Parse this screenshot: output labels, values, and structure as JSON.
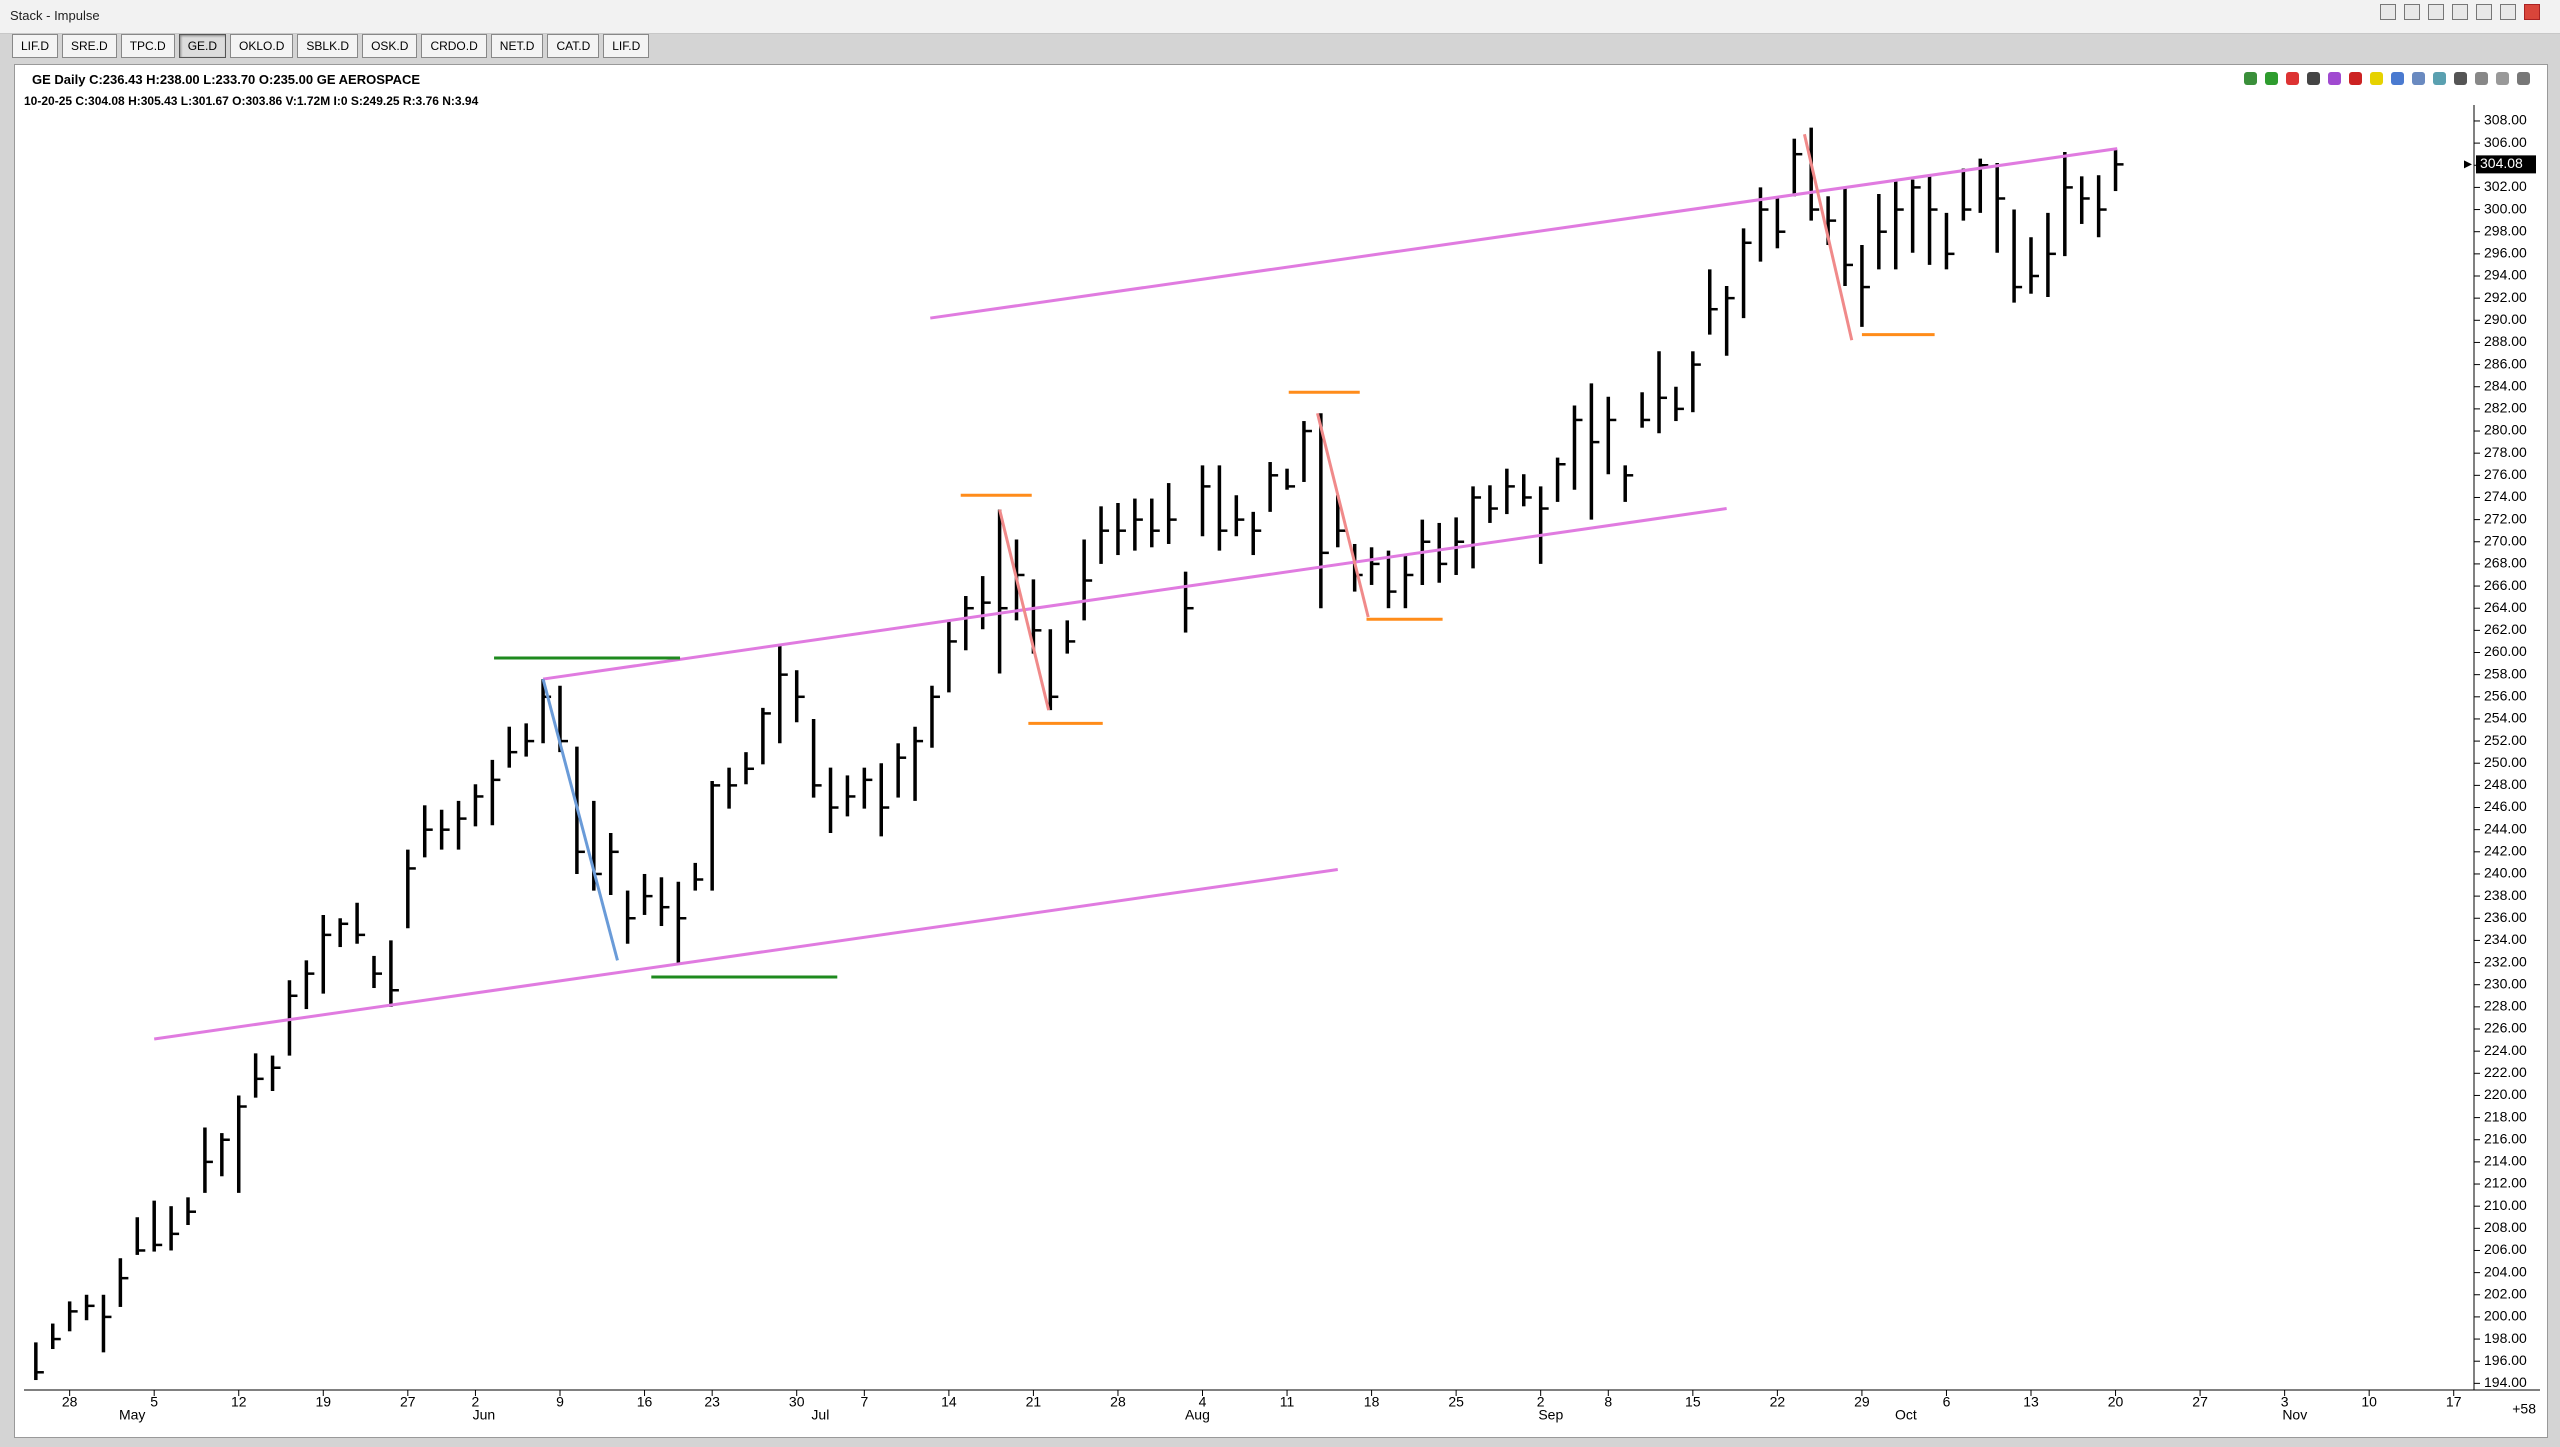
{
  "window_title": "Stack - Impulse",
  "tabs": [
    "LIF.D",
    "SRE.D",
    "TPC.D",
    "GE.D",
    "OKLO.D",
    "SBLK.D",
    "OSK.D",
    "CRDO.D",
    "NET.D",
    "CAT.D",
    "LIF.D"
  ],
  "active_tab": 3,
  "info": {
    "line1": "GE Daily C:236.43 H:238.00 L:233.70 O:235.00 GE AEROSPACE",
    "line2": "10-20-25 C:304.08 H:305.43 L:301.67 O:303.86 V:1.72M I:0 S:249.25 R:3.76 N:3.94"
  },
  "chart_data": {
    "type": "ohlc",
    "color": "#000000",
    "high": [
      197.7,
      199.4,
      201.4,
      202,
      202,
      205.3,
      209,
      210.5,
      210,
      210.8,
      217.1,
      216.6,
      220,
      223.8,
      223.6,
      230.4,
      232.2,
      236.3,
      236,
      237.4,
      232.6,
      234,
      242.2,
      246.2,
      245.8,
      246.6,
      248.1,
      250.3,
      253.3,
      253.6,
      257.6,
      257,
      251.5,
      246.6,
      243.7,
      238.5,
      240,
      239.7,
      239.3,
      241,
      248.4,
      249.6,
      251,
      255,
      260.7,
      258.4,
      254,
      249.6,
      248.9,
      249.6,
      250,
      251.8,
      253.3,
      257,
      262.9,
      265.1,
      266.9,
      272.9,
      270.2,
      266.6,
      262.1,
      262.9,
      270.2,
      273.2,
      273.5,
      273.9,
      273.9,
      275.3,
      267.3,
      276.9,
      276.9,
      274.2,
      272.7,
      277.2,
      276.6,
      280.9,
      281.6,
      274.2,
      269.8,
      269.5,
      269.2,
      268.8,
      272,
      271.7,
      272.2,
      275,
      275.1,
      276.6,
      276.1,
      275,
      277.6,
      282.3,
      284.3,
      283.1,
      276.9,
      283.5,
      287.2,
      284,
      287.2,
      294.6,
      293.1,
      298.3,
      302,
      301.2,
      306.4,
      307.4,
      301.2,
      302,
      296.8,
      301.4,
      302.7,
      302.7,
      303,
      299.7,
      303.7,
      304.6,
      304.2,
      300,
      297.5,
      299.7,
      305.2,
      303,
      303.1,
      305.43
    ],
    "low": [
      194.3,
      197.1,
      198.7,
      199.7,
      196.8,
      200.9,
      205.6,
      205.9,
      206,
      208.3,
      211.2,
      212.7,
      211.2,
      219.8,
      220.4,
      223.6,
      227.8,
      229.2,
      233.4,
      233.7,
      229.7,
      228,
      235.1,
      241.5,
      242.2,
      242.2,
      244.3,
      244.4,
      249.6,
      250.6,
      251.8,
      251,
      240,
      238.5,
      238.1,
      233.7,
      236.3,
      235.3,
      231.9,
      238.5,
      238.5,
      245.9,
      248.1,
      249.9,
      251.8,
      253.7,
      246.9,
      243.7,
      245.2,
      245.9,
      243.4,
      246.9,
      246.6,
      251.4,
      256.4,
      260.2,
      262.1,
      258.1,
      262.9,
      259.9,
      254.8,
      259.9,
      262.9,
      268,
      268.8,
      269.2,
      269.5,
      269.8,
      261.8,
      270.5,
      269.2,
      270.5,
      268.8,
      272.7,
      274.7,
      275.4,
      264,
      269.5,
      265.5,
      266.1,
      264,
      264,
      266.1,
      266.3,
      267,
      267.6,
      271.7,
      272.5,
      273.2,
      268,
      273.6,
      274.7,
      272,
      276.1,
      273.6,
      280.3,
      279.8,
      280.9,
      281.7,
      288.7,
      286.8,
      290.2,
      295.3,
      296.5,
      301.2,
      299,
      296.8,
      293.1,
      289.4,
      294.6,
      294.6,
      296.1,
      295,
      294.6,
      299,
      299.7,
      296.1,
      291.6,
      292.4,
      292.1,
      295.8,
      298.7,
      297.5,
      301.67
    ],
    "close": [
      195,
      198,
      200.5,
      201,
      200,
      203.5,
      206,
      206.5,
      207.5,
      209.5,
      214,
      216,
      219,
      221.5,
      222.5,
      229,
      231,
      234.5,
      235.5,
      234.5,
      231,
      229.5,
      240.5,
      244,
      244,
      245,
      247,
      248.5,
      251,
      252,
      256,
      252,
      242,
      240,
      242,
      236,
      238,
      237,
      236,
      239.5,
      248,
      248,
      249.5,
      254.5,
      258,
      256,
      248,
      246,
      247,
      248.5,
      246,
      250.5,
      252,
      256,
      261,
      264,
      264.5,
      264,
      267,
      262,
      256,
      261,
      266.5,
      271,
      271,
      272,
      271,
      272,
      264,
      275,
      271,
      272,
      271,
      276,
      275,
      280,
      269,
      271,
      267,
      268,
      265.5,
      267,
      270,
      268,
      270,
      274,
      273,
      275,
      274,
      273,
      277,
      281,
      279,
      281,
      276,
      281,
      283,
      282,
      286,
      291,
      292,
      297,
      300,
      298,
      305,
      300,
      299,
      295,
      293,
      298,
      300,
      302,
      300,
      296,
      300,
      304,
      301,
      293,
      294,
      296,
      302,
      301,
      300,
      304.08
    ],
    "last_label": "304.08",
    "xlim": [
      -0.7,
      144.2
    ],
    "ylim": [
      193.4,
      308.9
    ],
    "xticks": [
      {
        "value": 2,
        "label": "28"
      },
      {
        "value": 7,
        "label": "5"
      },
      {
        "value": 12,
        "label": "12"
      },
      {
        "value": 17,
        "label": "19"
      },
      {
        "value": 22,
        "label": "27"
      },
      {
        "value": 26,
        "label": "2"
      },
      {
        "value": 31,
        "label": "9"
      },
      {
        "value": 36,
        "label": "16"
      },
      {
        "value": 40,
        "label": "23"
      },
      {
        "value": 45,
        "label": "30"
      },
      {
        "value": 49,
        "label": "7"
      },
      {
        "value": 54,
        "label": "14"
      },
      {
        "value": 59,
        "label": "21"
      },
      {
        "value": 64,
        "label": "28"
      },
      {
        "value": 69,
        "label": "4"
      },
      {
        "value": 74,
        "label": "11"
      },
      {
        "value": 79,
        "label": "18"
      },
      {
        "value": 84,
        "label": "25"
      },
      {
        "value": 89,
        "label": "2"
      },
      {
        "value": 93,
        "label": "8"
      },
      {
        "value": 98,
        "label": "15"
      },
      {
        "value": 103,
        "label": "22"
      },
      {
        "value": 108,
        "label": "29"
      },
      {
        "value": 113,
        "label": "6"
      },
      {
        "value": 118,
        "label": "13"
      },
      {
        "value": 123,
        "label": "20"
      },
      {
        "value": 128,
        "label": "27"
      },
      {
        "value": 133,
        "label": "3"
      },
      {
        "value": 138,
        "label": "10"
      },
      {
        "value": 143,
        "label": "17"
      }
    ],
    "month_ticks": [
      {
        "value": 5.7,
        "label": "May"
      },
      {
        "value": 26.5,
        "label": "Jun"
      },
      {
        "value": 46.4,
        "label": "Jul"
      },
      {
        "value": 68.7,
        "label": "Aug"
      },
      {
        "value": 89.6,
        "label": "Sep"
      },
      {
        "value": 110.6,
        "label": "Oct"
      },
      {
        "value": 133.6,
        "label": "Nov"
      }
    ],
    "yticks": [
      {
        "value": 194,
        "label": "194.00"
      },
      {
        "value": 196,
        "label": "196.00"
      },
      {
        "value": 198,
        "label": "198.00"
      },
      {
        "value": 200,
        "label": "200.00"
      },
      {
        "value": 202,
        "label": "202.00"
      },
      {
        "value": 204,
        "label": "204.00"
      },
      {
        "value": 206,
        "label": "206.00"
      },
      {
        "value": 208,
        "label": "208.00"
      },
      {
        "value": 210,
        "label": "210.00"
      },
      {
        "value": 212,
        "label": "212.00"
      },
      {
        "value": 214,
        "label": "214.00"
      },
      {
        "value": 216,
        "label": "216.00"
      },
      {
        "value": 218,
        "label": "218.00"
      },
      {
        "value": 220,
        "label": "220.00"
      },
      {
        "value": 222,
        "label": "222.00"
      },
      {
        "value": 224,
        "label": "224.00"
      },
      {
        "value": 226,
        "label": "226.00"
      },
      {
        "value": 228,
        "label": "228.00"
      },
      {
        "value": 230,
        "label": "230.00"
      },
      {
        "value": 232,
        "label": "232.00"
      },
      {
        "value": 234,
        "label": "234.00"
      },
      {
        "value": 236,
        "label": "236.00"
      },
      {
        "value": 238,
        "label": "238.00"
      },
      {
        "value": 240,
        "label": "240.00"
      },
      {
        "value": 242,
        "label": "242.00"
      },
      {
        "value": 244,
        "label": "244.00"
      },
      {
        "value": 246,
        "label": "246.00"
      },
      {
        "value": 248,
        "label": "248.00"
      },
      {
        "value": 250,
        "label": "250.00"
      },
      {
        "value": 252,
        "label": "252.00"
      },
      {
        "value": 254,
        "label": "254.00"
      },
      {
        "value": 256,
        "label": "256.00"
      },
      {
        "value": 258,
        "label": "258.00"
      },
      {
        "value": 260,
        "label": "260.00"
      },
      {
        "value": 262,
        "label": "262.00"
      },
      {
        "value": 264,
        "label": "264.00"
      },
      {
        "value": 266,
        "label": "266.00"
      },
      {
        "value": 268,
        "label": "268.00"
      },
      {
        "value": 270,
        "label": "270.00"
      },
      {
        "value": 272,
        "label": "272.00"
      },
      {
        "value": 274,
        "label": "274.00"
      },
      {
        "value": 276,
        "label": "276.00"
      },
      {
        "value": 278,
        "label": "278.00"
      },
      {
        "value": 280,
        "label": "280.00"
      },
      {
        "value": 282,
        "label": "282.00"
      },
      {
        "value": 284,
        "label": "284.00"
      },
      {
        "value": 286,
        "label": "286.00"
      },
      {
        "value": 288,
        "label": "288.00"
      },
      {
        "value": 290,
        "label": "290.00"
      },
      {
        "value": 292,
        "label": "292.00"
      },
      {
        "value": 294,
        "label": "294.00"
      },
      {
        "value": 296,
        "label": "296.00"
      },
      {
        "value": 298,
        "label": "298.00"
      },
      {
        "value": 300,
        "label": "300.00"
      },
      {
        "value": 302,
        "label": "302.00"
      },
      {
        "value": 304,
        "label": "304.00"
      },
      {
        "value": 306,
        "label": "306.00"
      },
      {
        "value": 308,
        "label": "308.00"
      }
    ],
    "corner_label": "+58",
    "lines": [
      {
        "color": "#e07be0",
        "x0": 52.9,
        "y0": 290.2,
        "x1": 123.1,
        "y1": 305.5
      },
      {
        "color": "#e07be0",
        "x0": 30,
        "y0": 257.6,
        "x1": 100,
        "y1": 273
      },
      {
        "color": "#e07be0",
        "x0": 7,
        "y0": 225.1,
        "x1": 77,
        "y1": 240.4
      },
      {
        "color": "#1e8a1e",
        "x0": 27.1,
        "y0": 259.5,
        "x1": 38.1,
        "y1": 259.5
      },
      {
        "color": "#1e8a1e",
        "x0": 36.4,
        "y0": 230.7,
        "x1": 47.4,
        "y1": 230.7
      },
      {
        "color": "#6a9bd8",
        "x0": 30,
        "y0": 257.6,
        "x1": 34.4,
        "y1": 232.2
      },
      {
        "color": "#ff8c1a",
        "x0": 54.7,
        "y0": 274.2,
        "x1": 58.9,
        "y1": 274.2
      },
      {
        "color": "#ff8c1a",
        "x0": 58.7,
        "y0": 253.6,
        "x1": 63.1,
        "y1": 253.6
      },
      {
        "color": "#ff8c1a",
        "x0": 74.1,
        "y0": 283.5,
        "x1": 78.3,
        "y1": 283.5
      },
      {
        "color": "#ff8c1a",
        "x0": 78.7,
        "y0": 263,
        "x1": 83.2,
        "y1": 263
      },
      {
        "color": "#ff8c1a",
        "x0": 108,
        "y0": 288.7,
        "x1": 112.3,
        "y1": 288.7
      },
      {
        "color": "#f08a8a",
        "x0": 57,
        "y0": 272.9,
        "x1": 59.9,
        "y1": 254.8
      },
      {
        "color": "#f08a8a",
        "x0": 75.8,
        "y0": 281.6,
        "x1": 78.8,
        "y1": 263.2
      },
      {
        "color": "#f08a8a",
        "x0": 104.6,
        "y0": 306.8,
        "x1": 107.4,
        "y1": 288.2
      }
    ]
  }
}
